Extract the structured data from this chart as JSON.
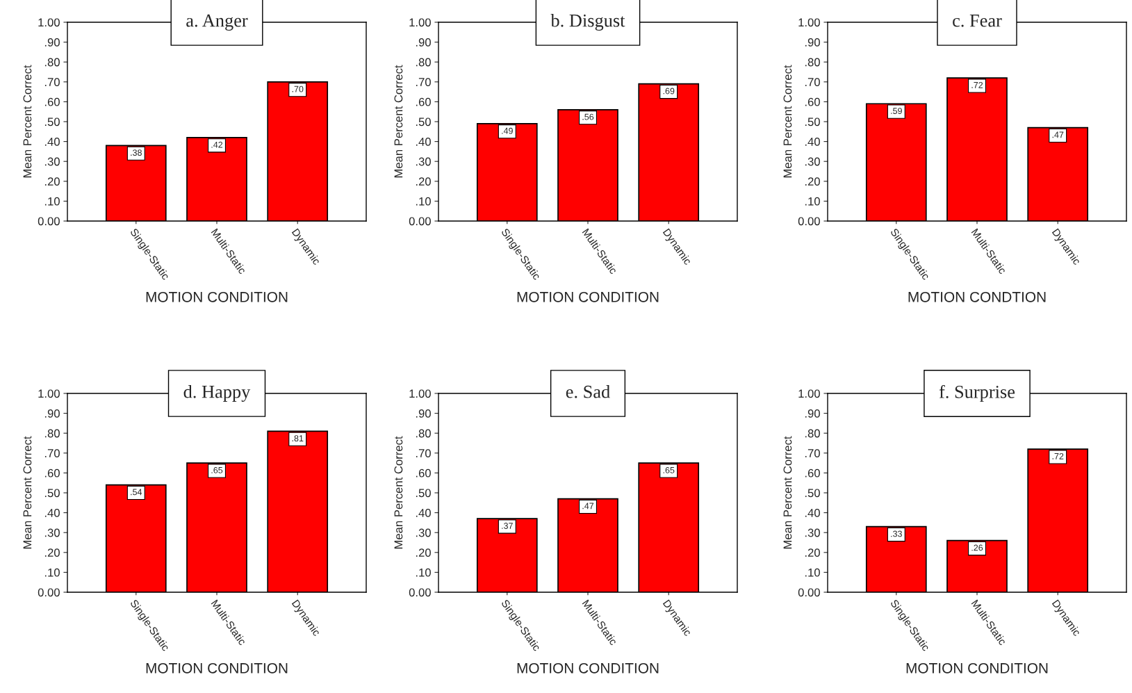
{
  "chart_data": [
    {
      "type": "bar",
      "title": "a. Anger",
      "xlabel": "MOTION CONDITION",
      "ylabel": "Mean Percent Correct",
      "categories": [
        "Single-Static",
        "Multi-Static",
        "Dynamic"
      ],
      "values": [
        0.38,
        0.42,
        0.7
      ],
      "value_labels": [
        ".38",
        ".42",
        ".70"
      ],
      "color": "#ff0000",
      "ylim": [
        0,
        1
      ],
      "yticks": [
        {
          "value": 0,
          "label": "0.00"
        },
        {
          "value": 0.1,
          "label": ".10"
        },
        {
          "value": 0.2,
          "label": ".20"
        },
        {
          "value": 0.3,
          "label": ".30"
        },
        {
          "value": 0.4,
          "label": ".40"
        },
        {
          "value": 0.5,
          "label": ".50"
        },
        {
          "value": 0.6,
          "label": ".60"
        },
        {
          "value": 0.7,
          "label": ".70"
        },
        {
          "value": 0.8,
          "label": ".80"
        },
        {
          "value": 0.9,
          "label": ".90"
        },
        {
          "value": 1,
          "label": "1.00"
        }
      ],
      "grid": false,
      "legend": false
    },
    {
      "type": "bar",
      "title": "b. Disgust",
      "xlabel": "MOTION CONDITION",
      "ylabel": "Mean Percent Correct",
      "categories": [
        "Single-Static",
        "Multi-Static",
        "Dynamic"
      ],
      "values": [
        0.49,
        0.56,
        0.69
      ],
      "value_labels": [
        ".49",
        ".56",
        ".69"
      ],
      "color": "#ff0000",
      "ylim": [
        0,
        1
      ],
      "yticks": [
        {
          "value": 0,
          "label": "0.00"
        },
        {
          "value": 0.1,
          "label": ".10"
        },
        {
          "value": 0.2,
          "label": ".20"
        },
        {
          "value": 0.3,
          "label": ".30"
        },
        {
          "value": 0.4,
          "label": ".40"
        },
        {
          "value": 0.5,
          "label": ".50"
        },
        {
          "value": 0.6,
          "label": ".60"
        },
        {
          "value": 0.7,
          "label": ".70"
        },
        {
          "value": 0.8,
          "label": ".80"
        },
        {
          "value": 0.9,
          "label": ".90"
        },
        {
          "value": 1,
          "label": "1.00"
        }
      ],
      "grid": false,
      "legend": false
    },
    {
      "type": "bar",
      "title": "c. Fear",
      "xlabel": "MOTION CONDTION",
      "ylabel": "Mean Percent Correct",
      "categories": [
        "Single-Static",
        "Multi-Static",
        "Dynamic"
      ],
      "values": [
        0.59,
        0.72,
        0.47
      ],
      "value_labels": [
        ".59",
        ".72",
        ".47"
      ],
      "color": "#ff0000",
      "ylim": [
        0,
        1
      ],
      "yticks": [
        {
          "value": 0,
          "label": "0.00"
        },
        {
          "value": 0.1,
          "label": ".10"
        },
        {
          "value": 0.2,
          "label": ".20"
        },
        {
          "value": 0.3,
          "label": ".30"
        },
        {
          "value": 0.4,
          "label": ".40"
        },
        {
          "value": 0.5,
          "label": ".50"
        },
        {
          "value": 0.6,
          "label": ".60"
        },
        {
          "value": 0.7,
          "label": ".70"
        },
        {
          "value": 0.8,
          "label": ".80"
        },
        {
          "value": 0.9,
          "label": ".90"
        },
        {
          "value": 1,
          "label": "1.00"
        }
      ],
      "grid": false,
      "legend": false
    },
    {
      "type": "bar",
      "title": "d. Happy",
      "xlabel": "MOTION CONDITION",
      "ylabel": "Mean Percent Correct",
      "categories": [
        "Single-Static",
        "Multi-Static",
        "Dynamic"
      ],
      "values": [
        0.54,
        0.65,
        0.81
      ],
      "value_labels": [
        ".54",
        ".65",
        ".81"
      ],
      "color": "#ff0000",
      "ylim": [
        0,
        1
      ],
      "yticks": [
        {
          "value": 0,
          "label": "0.00"
        },
        {
          "value": 0.1,
          "label": ".10"
        },
        {
          "value": 0.2,
          "label": ".20"
        },
        {
          "value": 0.3,
          "label": ".30"
        },
        {
          "value": 0.4,
          "label": ".40"
        },
        {
          "value": 0.5,
          "label": ".50"
        },
        {
          "value": 0.6,
          "label": ".60"
        },
        {
          "value": 0.7,
          "label": ".70"
        },
        {
          "value": 0.8,
          "label": ".80"
        },
        {
          "value": 0.9,
          "label": ".90"
        },
        {
          "value": 1,
          "label": "1.00"
        }
      ],
      "grid": false,
      "legend": false
    },
    {
      "type": "bar",
      "title": "e. Sad",
      "xlabel": "MOTION CONDITION",
      "ylabel": "Mean Percent Correct",
      "categories": [
        "Single-Static",
        "Multi-Static",
        "Dynamic"
      ],
      "values": [
        0.37,
        0.47,
        0.65
      ],
      "value_labels": [
        ".37",
        ".47",
        ".65"
      ],
      "color": "#ff0000",
      "ylim": [
        0,
        1
      ],
      "yticks": [
        {
          "value": 0,
          "label": "0.00"
        },
        {
          "value": 0.1,
          "label": ".10"
        },
        {
          "value": 0.2,
          "label": ".20"
        },
        {
          "value": 0.3,
          "label": ".30"
        },
        {
          "value": 0.4,
          "label": ".40"
        },
        {
          "value": 0.5,
          "label": ".50"
        },
        {
          "value": 0.6,
          "label": ".60"
        },
        {
          "value": 0.7,
          "label": ".70"
        },
        {
          "value": 0.8,
          "label": ".80"
        },
        {
          "value": 0.9,
          "label": ".90"
        },
        {
          "value": 1,
          "label": "1.00"
        }
      ],
      "grid": false,
      "legend": false
    },
    {
      "type": "bar",
      "title": "f. Surprise",
      "xlabel": "MOTION CONDITION",
      "ylabel": "Mean Percent Correct",
      "categories": [
        "Single-Static",
        "Multi-Static",
        "Dynamic"
      ],
      "values": [
        0.33,
        0.26,
        0.72
      ],
      "value_labels": [
        ".33",
        ".26",
        ".72"
      ],
      "color": "#ff0000",
      "ylim": [
        0,
        1
      ],
      "yticks": [
        {
          "value": 0,
          "label": "0.00"
        },
        {
          "value": 0.1,
          "label": ".10"
        },
        {
          "value": 0.2,
          "label": ".20"
        },
        {
          "value": 0.3,
          "label": ".30"
        },
        {
          "value": 0.4,
          "label": ".40"
        },
        {
          "value": 0.5,
          "label": ".50"
        },
        {
          "value": 0.6,
          "label": ".60"
        },
        {
          "value": 0.7,
          "label": ".70"
        },
        {
          "value": 0.8,
          "label": ".80"
        },
        {
          "value": 0.9,
          "label": ".90"
        },
        {
          "value": 1,
          "label": "1.00"
        }
      ],
      "grid": false,
      "legend": false
    }
  ]
}
